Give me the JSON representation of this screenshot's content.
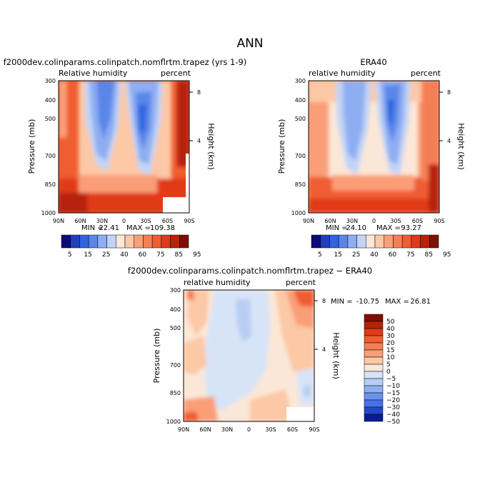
{
  "page_title": "ANN",
  "chart_data": [
    {
      "type": "heatmap",
      "title": "f2000dev.colinparams.colinpatch.nomflrtm.trapez (yrs 1-9)",
      "variable_label": "Relative humidity",
      "units_label": "percent",
      "ylabel": "Pressure (mb)",
      "y2label": "Height (km)",
      "x_ticks": [
        "90N",
        "60N",
        "30N",
        "0",
        "30S",
        "60S",
        "90S"
      ],
      "y_ticks": [
        "300",
        "400",
        "500",
        "700",
        "850",
        "1000"
      ],
      "y2_ticks": [
        "8",
        "4"
      ],
      "ylim": [
        1000,
        300
      ],
      "min_label": "MIN =",
      "min_value": "22.41",
      "max_label": "MAX =",
      "max_value": "109.38",
      "colorbar_labels": [
        "5",
        "15",
        "25",
        "40",
        "60",
        "75",
        "85",
        "95"
      ]
    },
    {
      "type": "heatmap",
      "title": "ERA40",
      "variable_label": "relative humidity",
      "units_label": "percent",
      "ylabel": "Pressure (mb)",
      "y2label": "Height (km)",
      "x_ticks": [
        "90N",
        "60N",
        "30N",
        "0",
        "30S",
        "60S",
        "90S"
      ],
      "y_ticks": [
        "300",
        "400",
        "500",
        "700",
        "850",
        "1000"
      ],
      "y2_ticks": [
        "8",
        "4"
      ],
      "ylim": [
        1000,
        300
      ],
      "min_label": "MIN =",
      "min_value": "24.10",
      "max_label": "MAX =",
      "max_value": "93.27",
      "colorbar_labels": [
        "5",
        "15",
        "25",
        "40",
        "60",
        "75",
        "85",
        "95"
      ]
    },
    {
      "type": "heatmap",
      "title": "f2000dev.colinparams.colinpatch.nomflrtm.trapez − ERA40",
      "variable_label": "relative humidity",
      "units_label": "percent",
      "ylabel": "Pressure (mb)",
      "y2label": "Height (km)",
      "x_ticks": [
        "90N",
        "60N",
        "30N",
        "0",
        "30S",
        "60S",
        "90S"
      ],
      "y_ticks": [
        "300",
        "400",
        "500",
        "700",
        "850",
        "1000"
      ],
      "y2_ticks": [
        "8",
        "4"
      ],
      "ylim": [
        1000,
        300
      ],
      "min_label": "MIN =",
      "min_value": "-10.75",
      "max_label": "MAX =",
      "max_value": "26.81",
      "colorbar_labels": [
        "50",
        "40",
        "30",
        "20",
        "15",
        "10",
        "5",
        "0",
        "−5",
        "−10",
        "−15",
        "−20",
        "−30",
        "−40",
        "−50"
      ]
    }
  ],
  "colors": {
    "rh_scale": [
      "#0c0c78",
      "#1f3fbf",
      "#2f63e0",
      "#5a86ea",
      "#8eaef2",
      "#c1d4f6",
      "#fbe7d8",
      "#fcc8a6",
      "#fa9e78",
      "#f57f55",
      "#ef5d30",
      "#e03a17",
      "#b52309",
      "#7d0f04"
    ],
    "diff_scale": [
      "#7d0f04",
      "#b52309",
      "#e03a17",
      "#ef5d30",
      "#f57f55",
      "#fa9e78",
      "#fcc8a6",
      "#fbe7d8",
      "#d7e4f8",
      "#b7cdf4",
      "#8eaef2",
      "#6a93ec",
      "#4673e4",
      "#2048c8",
      "#0c1a92"
    ]
  }
}
